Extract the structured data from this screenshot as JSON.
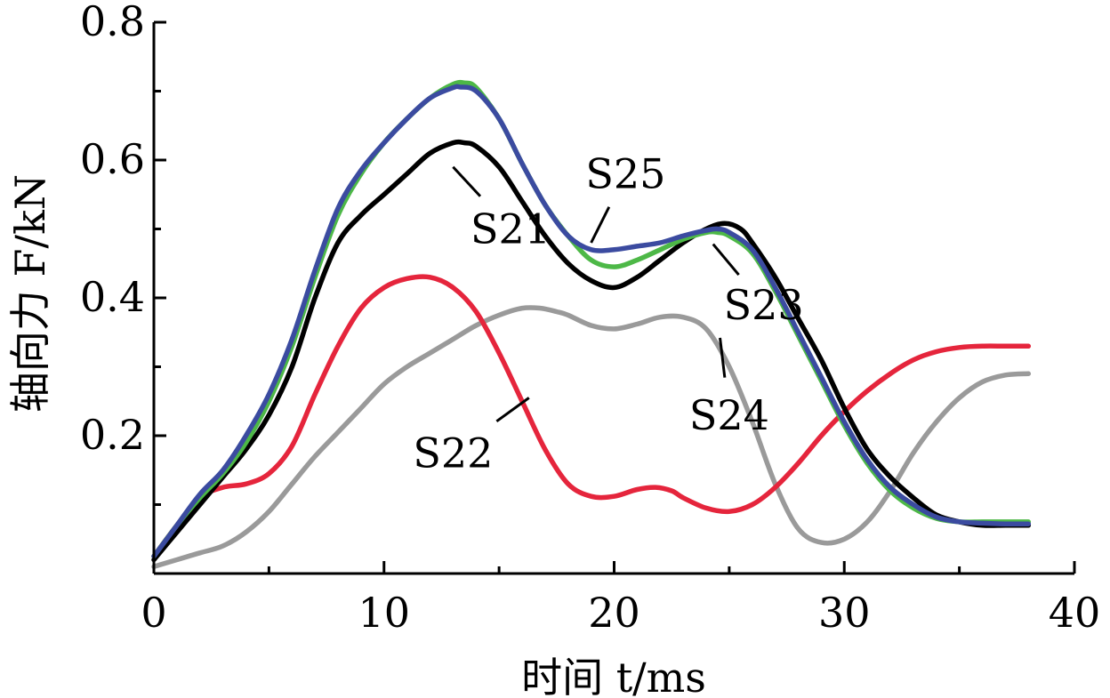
{
  "chart_data": {
    "type": "line",
    "xlabel": "时间 t/ms",
    "ylabel": "轴向力 F/kN",
    "xlim": [
      0,
      40
    ],
    "ylim": [
      0,
      0.8
    ],
    "xticks": [
      0,
      10,
      20,
      30,
      40
    ],
    "xtick_labels": [
      "0",
      "10",
      "20",
      "30",
      "40"
    ],
    "yticks": [
      0.2,
      0.4,
      0.6,
      0.8
    ],
    "ytick_labels": [
      "0.2",
      "0.4",
      "0.6",
      "0.8"
    ],
    "grid": false,
    "series": [
      {
        "name": "S21",
        "color": "#000000",
        "x": [
          0,
          1,
          2,
          3,
          4,
          5,
          6,
          7,
          8,
          9,
          10,
          11,
          12,
          13,
          13.5,
          14,
          15,
          16,
          17,
          18,
          19,
          20,
          21,
          22,
          23,
          24,
          24.8,
          25.5,
          26,
          27,
          28,
          29,
          30,
          31,
          32,
          33,
          34,
          35,
          36,
          37,
          38
        ],
        "y": [
          0.02,
          0.06,
          0.1,
          0.14,
          0.18,
          0.23,
          0.3,
          0.4,
          0.48,
          0.52,
          0.55,
          0.58,
          0.61,
          0.625,
          0.625,
          0.62,
          0.59,
          0.54,
          0.49,
          0.45,
          0.425,
          0.415,
          0.43,
          0.455,
          0.48,
          0.5,
          0.508,
          0.5,
          0.48,
          0.43,
          0.37,
          0.31,
          0.24,
          0.18,
          0.14,
          0.11,
          0.085,
          0.075,
          0.07,
          0.07,
          0.07
        ]
      },
      {
        "name": "S22",
        "color": "#e5253c",
        "x": [
          0,
          1,
          2,
          3,
          4,
          5,
          6,
          7,
          8,
          9,
          10,
          11,
          12,
          13,
          14,
          15,
          16,
          17,
          18,
          19,
          20,
          21,
          21.8,
          22.5,
          23,
          24,
          25,
          26,
          27,
          28,
          29,
          30,
          31,
          32,
          33,
          34,
          35,
          36,
          37,
          38
        ],
        "y": [
          0.025,
          0.07,
          0.11,
          0.125,
          0.13,
          0.145,
          0.185,
          0.26,
          0.33,
          0.385,
          0.415,
          0.428,
          0.43,
          0.415,
          0.38,
          0.32,
          0.25,
          0.18,
          0.13,
          0.112,
          0.112,
          0.122,
          0.125,
          0.12,
          0.11,
          0.095,
          0.09,
          0.1,
          0.125,
          0.16,
          0.2,
          0.235,
          0.265,
          0.29,
          0.31,
          0.322,
          0.328,
          0.33,
          0.33,
          0.33
        ]
      },
      {
        "name": "S23",
        "color": "#4db847",
        "x": [
          0,
          1,
          2,
          3,
          4,
          5,
          6,
          7,
          8,
          9,
          10,
          11,
          12,
          13,
          13.5,
          14,
          15,
          16,
          17,
          18,
          19,
          20,
          21,
          22,
          23,
          24,
          24.5,
          25,
          26,
          27,
          28,
          29,
          30,
          31,
          32,
          33,
          34,
          35,
          36,
          37,
          38
        ],
        "y": [
          0.025,
          0.07,
          0.11,
          0.145,
          0.19,
          0.25,
          0.33,
          0.43,
          0.52,
          0.58,
          0.625,
          0.66,
          0.69,
          0.71,
          0.712,
          0.705,
          0.66,
          0.595,
          0.535,
          0.49,
          0.455,
          0.445,
          0.455,
          0.47,
          0.485,
          0.495,
          0.495,
          0.49,
          0.465,
          0.41,
          0.345,
          0.28,
          0.215,
          0.16,
          0.12,
          0.095,
          0.08,
          0.075,
          0.075,
          0.075,
          0.075
        ]
      },
      {
        "name": "S24",
        "color": "#9a9a9a",
        "x": [
          0,
          1,
          2,
          3,
          4,
          5,
          6,
          7,
          8,
          9,
          10,
          11,
          12,
          13,
          14,
          15,
          16,
          16.8,
          17.5,
          18,
          19,
          20,
          21,
          22,
          23,
          24,
          25,
          26,
          27,
          28,
          29,
          30,
          31,
          32,
          33,
          34,
          35,
          36,
          37,
          38
        ],
        "y": [
          0.01,
          0.02,
          0.03,
          0.04,
          0.06,
          0.09,
          0.13,
          0.17,
          0.205,
          0.24,
          0.275,
          0.3,
          0.32,
          0.34,
          0.36,
          0.375,
          0.385,
          0.385,
          0.38,
          0.375,
          0.36,
          0.355,
          0.362,
          0.372,
          0.372,
          0.355,
          0.3,
          0.22,
          0.13,
          0.065,
          0.045,
          0.05,
          0.075,
          0.12,
          0.175,
          0.22,
          0.255,
          0.278,
          0.288,
          0.29
        ]
      },
      {
        "name": "S25",
        "color": "#3b4ba0",
        "x": [
          0,
          1,
          2,
          3,
          4,
          5,
          6,
          7,
          8,
          9,
          10,
          11,
          12,
          13,
          13.3,
          14,
          15,
          16,
          17,
          18,
          19,
          20,
          21,
          22,
          23,
          24,
          24.5,
          25,
          26,
          27,
          28,
          29,
          30,
          31,
          32,
          33,
          34,
          35,
          36,
          37,
          38
        ],
        "y": [
          0.025,
          0.07,
          0.115,
          0.15,
          0.2,
          0.26,
          0.34,
          0.44,
          0.53,
          0.585,
          0.625,
          0.66,
          0.69,
          0.705,
          0.706,
          0.7,
          0.66,
          0.595,
          0.535,
          0.49,
          0.47,
          0.47,
          0.475,
          0.48,
          0.49,
          0.498,
          0.5,
          0.495,
          0.47,
          0.415,
          0.35,
          0.285,
          0.22,
          0.165,
          0.125,
          0.1,
          0.082,
          0.075,
          0.073,
          0.072,
          0.072
        ]
      }
    ],
    "annotations": [
      {
        "text": "S21",
        "series": "S21",
        "x": 15.5,
        "y": 0.5,
        "ax": 13.0,
        "ay": 0.59
      },
      {
        "text": "S25",
        "series": "S25",
        "x": 20.5,
        "y": 0.58,
        "ax": 19.0,
        "ay": 0.48
      },
      {
        "text": "S23",
        "series": "S23",
        "x": 26.5,
        "y": 0.39,
        "ax": 24.3,
        "ay": 0.478
      },
      {
        "text": "S22",
        "series": "S22",
        "x": 13.0,
        "y": 0.175,
        "ax": 16.3,
        "ay": 0.255
      },
      {
        "text": "S24",
        "series": "S24",
        "x": 25.0,
        "y": 0.23,
        "ax": 24.6,
        "ay": 0.342
      }
    ]
  }
}
